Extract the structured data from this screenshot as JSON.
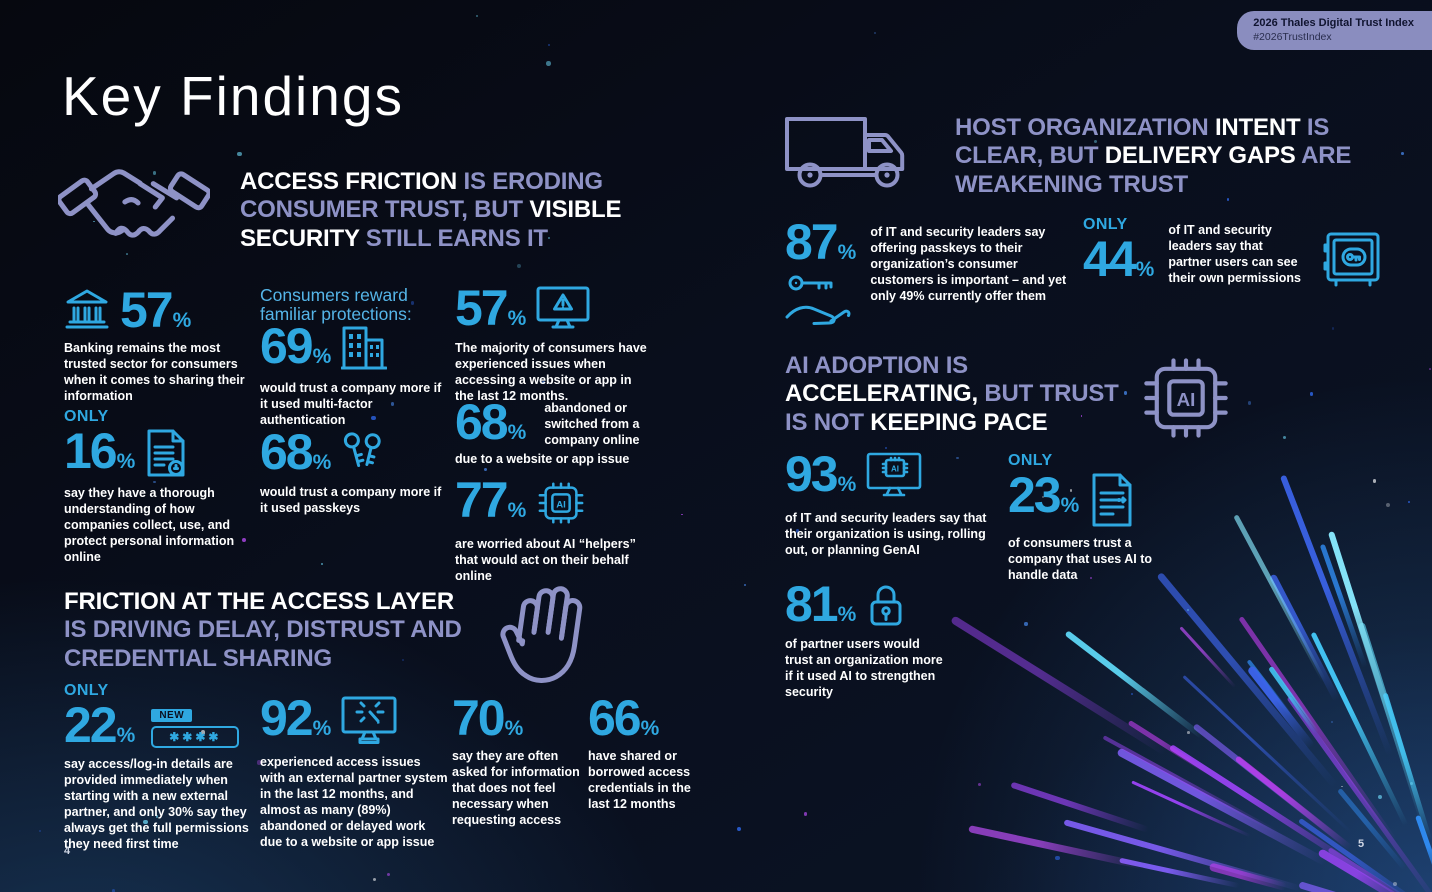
{
  "meta": {
    "badge_line1": "2026 Thales Digital Trust Index",
    "badge_line2": "#2026TrustIndex",
    "page_title": "Key Findings",
    "page_number_left": "4",
    "page_number_right": "5"
  },
  "colors": {
    "accent_blue": "#2FA8E1",
    "accent_purple": "#8E92C6",
    "light_blue_subhead": "#55B5E8",
    "badge_background": "#8A8DBF",
    "background": "#090E1C"
  },
  "icons": {
    "ai_label": "AI",
    "new_label": "NEW",
    "password_mask": "✱✱✱✱"
  },
  "sec_access": {
    "heading": [
      [
        {
          "t": "ACCESS FRICTION ",
          "c": "w"
        },
        {
          "t": "IS ERODING",
          "c": "p"
        }
      ],
      [
        {
          "t": "CONSUMER TRUST, BUT ",
          "c": "p"
        },
        {
          "t": "VISIBLE",
          "c": "w"
        }
      ],
      [
        {
          "t": "SECURITY ",
          "c": "w"
        },
        {
          "t": "STILL EARNS IT",
          "c": "p"
        }
      ]
    ],
    "stat_banking": {
      "value": "57",
      "unit": "%",
      "desc": "Banking remains the most trusted sector for consumers when it comes to sharing their information"
    },
    "stat_understanding": {
      "only": "ONLY",
      "value": "16",
      "unit": "%",
      "desc": "say they have a thorough understanding of how companies collect, use, and protect personal information online"
    },
    "subheading": "Consumers reward familiar protections:",
    "stat_mfa": {
      "value": "69",
      "unit": "%",
      "desc": "would trust a company more if it used multi-factor authentication"
    },
    "stat_passkeys": {
      "value": "68",
      "unit": "%",
      "desc": "would trust a company more if it used passkeys"
    },
    "stat_issues": {
      "value": "57",
      "unit": "%",
      "desc": "The majority of consumers have experienced issues when accessing a website or app in the last 12 months."
    },
    "stat_abandoned": {
      "value": "68",
      "unit": "%",
      "side_text": "abandoned or switched from a company online",
      "tail_text": "due to a website or app issue"
    },
    "stat_ai_helpers": {
      "value": "77",
      "unit": "%",
      "desc": "are worried about AI “helpers” that would act on their behalf online"
    }
  },
  "sec_friction": {
    "heading": [
      [
        {
          "t": "FRICTION AT THE ACCESS LAYER",
          "c": "w"
        }
      ],
      [
        {
          "t": "IS DRIVING DELAY, DISTRUST AND",
          "c": "p"
        }
      ],
      [
        {
          "t": "CREDENTIAL SHARING",
          "c": "p"
        }
      ]
    ],
    "stat_login": {
      "only": "ONLY",
      "value": "22",
      "unit": "%",
      "desc": "say access/log-in details are provided immediately when starting with a new external partner, and only 30% say they always get the full permissions they need first time"
    },
    "stat_partner_issues": {
      "value": "92",
      "unit": "%",
      "desc": "experienced access issues with an external partner system in the last 12 months, and almost as many (89%) abandoned or delayed work due to a website or app issue"
    },
    "stat_unnecessary": {
      "value": "70",
      "unit": "%",
      "desc": "say they are often asked for information that does not feel necessary when requesting access"
    },
    "stat_shared": {
      "value": "66",
      "unit": "%",
      "desc": "have shared or borrowed access credentials in the last 12 months"
    }
  },
  "sec_host": {
    "heading": [
      [
        {
          "t": "HOST ORGANIZATION ",
          "c": "p"
        },
        {
          "t": "INTENT ",
          "c": "w"
        },
        {
          "t": "IS",
          "c": "p"
        }
      ],
      [
        {
          "t": "CLEAR, BUT ",
          "c": "p"
        },
        {
          "t": "DELIVERY GAPS ",
          "c": "w"
        },
        {
          "t": "ARE",
          "c": "p"
        }
      ],
      [
        {
          "t": "WEAKENING TRUST",
          "c": "p"
        }
      ]
    ],
    "stat_passkeys_important": {
      "value": "87",
      "unit": "%",
      "desc": "of IT and security leaders say offering passkeys to their organization’s consumer customers is important – and yet only 49% currently offer them"
    },
    "stat_permissions": {
      "only": "ONLY",
      "value": "44",
      "unit": "%",
      "desc": "of IT and security leaders say that partner users can see their own permissions"
    }
  },
  "sec_ai": {
    "heading": [
      [
        {
          "t": "AI ADOPTION IS",
          "c": "p"
        }
      ],
      [
        {
          "t": "ACCELERATING, ",
          "c": "w"
        },
        {
          "t": "BUT TRUST",
          "c": "p"
        }
      ],
      [
        {
          "t": "IS NOT ",
          "c": "p"
        },
        {
          "t": "KEEPING PACE",
          "c": "w"
        }
      ]
    ],
    "stat_genai": {
      "value": "93",
      "unit": "%",
      "desc": "of IT and security leaders say that their organization is using, rolling out, or planning GenAI"
    },
    "stat_trust_ai": {
      "only": "ONLY",
      "value": "23",
      "unit": "%",
      "desc": "of consumers trust a company that uses AI to handle data"
    },
    "stat_ai_security": {
      "value": "81",
      "unit": "%",
      "desc": "of partner users would trust an organization more if it used AI to strengthen security"
    }
  }
}
